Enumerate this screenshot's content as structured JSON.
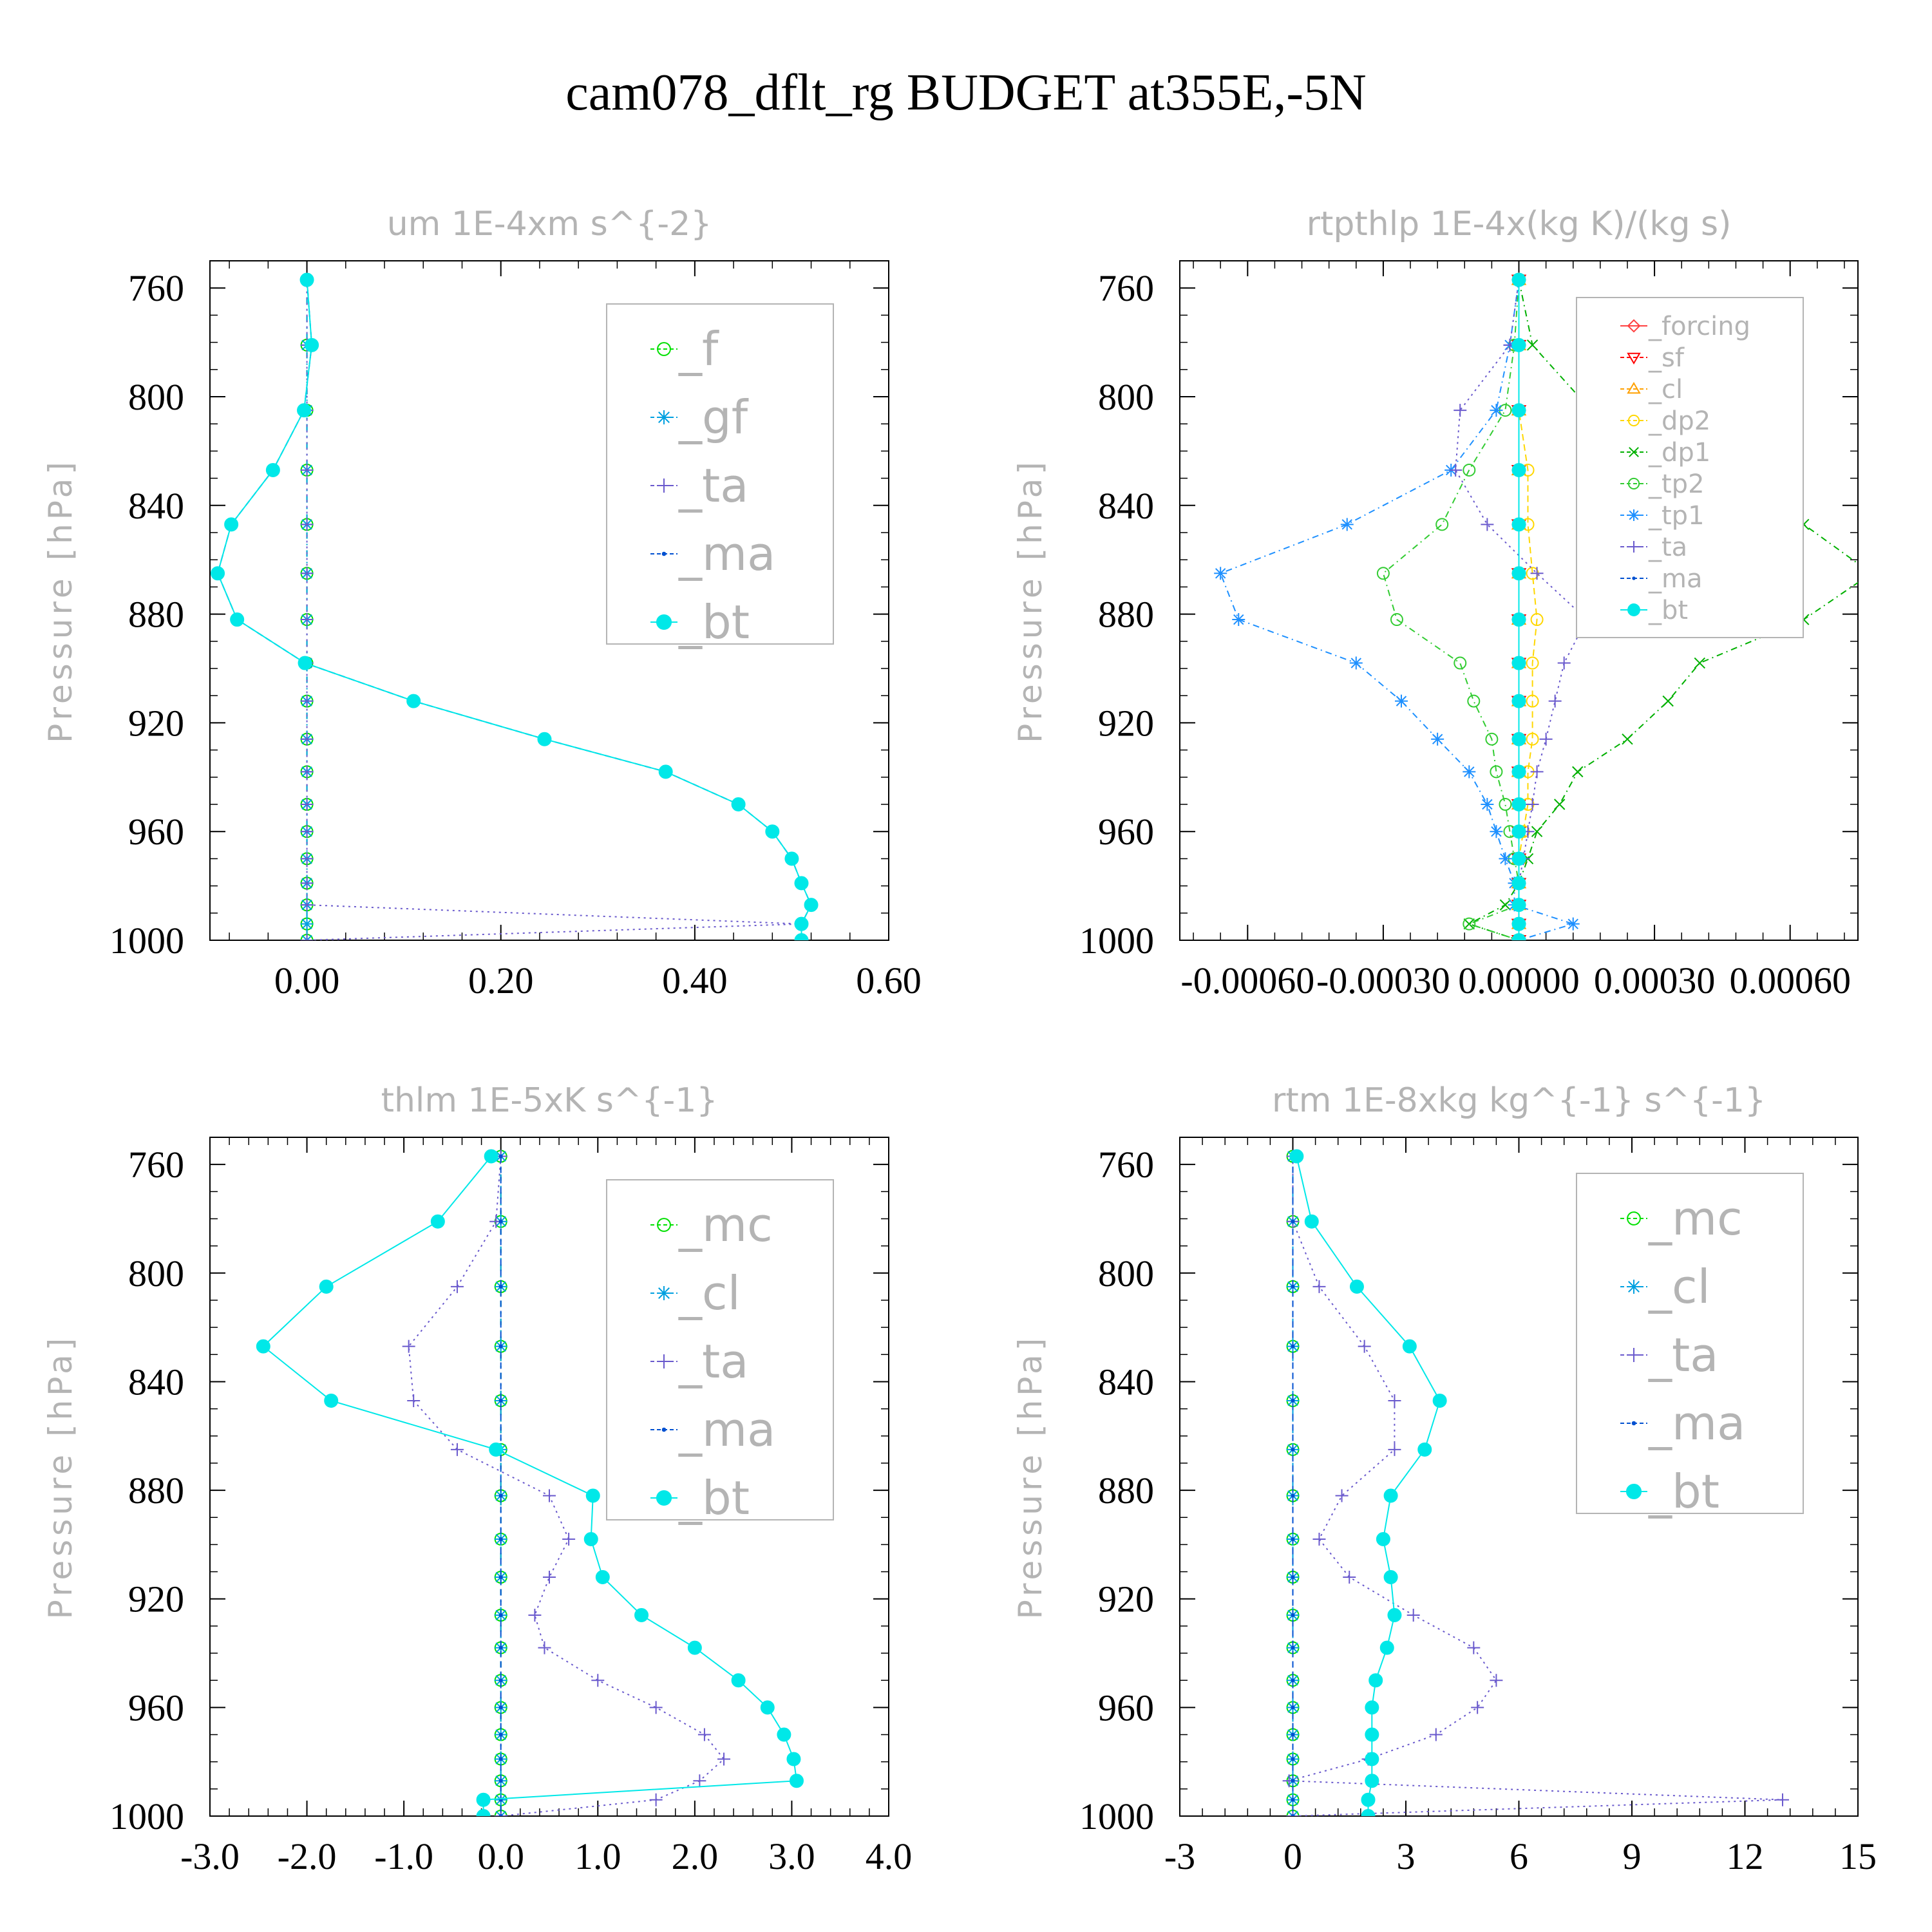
{
  "figure": {
    "title": "cam078_dflt_rg  BUDGET at355E,-5N"
  },
  "chart_data": [
    {
      "type": "line",
      "title": "um  1E-4xm s^{-2}",
      "ylabel": "Pressure [hPa]",
      "y_inverted": true,
      "ylim": [
        1000,
        750
      ],
      "xlim": [
        -0.1,
        0.6
      ],
      "xticks": [
        0.0,
        0.2,
        0.4,
        0.6
      ],
      "xtick_labels": [
        "0.00",
        "0.20",
        "0.40",
        "0.60"
      ],
      "yticks": [
        760,
        800,
        840,
        880,
        920,
        960,
        1000
      ],
      "ytick_labels": [
        "760",
        "800",
        "840",
        "880",
        "920",
        "960",
        "1000"
      ],
      "legend_position": "upper-right",
      "pressure": [
        757,
        781,
        805,
        827,
        847,
        865,
        882,
        898,
        912,
        926,
        938,
        950,
        960,
        970,
        979,
        987,
        994,
        1000
      ],
      "series": [
        {
          "name": "_f",
          "color": "#00e000",
          "marker": "circle-open",
          "dash": "10 8 2 8",
          "values": [
            0,
            0,
            0,
            0,
            0,
            0,
            0,
            0,
            0,
            0,
            0,
            0,
            0,
            0,
            0,
            0,
            0,
            0
          ]
        },
        {
          "name": "_gf",
          "color": "#00a0e0",
          "marker": "star",
          "dash": "10 8 2 8",
          "values": [
            0,
            0,
            0,
            0,
            0,
            0,
            0,
            0,
            0,
            0,
            0,
            0,
            0,
            0,
            0,
            0,
            0,
            0
          ]
        },
        {
          "name": "_ta",
          "color": "#6a5acd",
          "marker": "plus",
          "dash": "3 6",
          "values": [
            0,
            0,
            0,
            0,
            0,
            0,
            0,
            0,
            0,
            0,
            0,
            0,
            0,
            0,
            0,
            0,
            0.51,
            0
          ]
        },
        {
          "name": "_ma",
          "color": "#0050d0",
          "marker": "dot",
          "dash": "10 6",
          "values": [
            0.0,
            0.005,
            -0.003,
            -0.035,
            -0.078,
            -0.092,
            -0.072,
            -0.002,
            0.11,
            0.245,
            0.37,
            0.445,
            0.48,
            0.5,
            0.51,
            0.52,
            0.51,
            0.51
          ]
        },
        {
          "name": "_bt",
          "color": "#00e8e8",
          "marker": "disc",
          "dash": "none",
          "values": [
            0.0,
            0.005,
            -0.003,
            -0.035,
            -0.078,
            -0.092,
            -0.072,
            -0.002,
            0.11,
            0.245,
            0.37,
            0.445,
            0.48,
            0.5,
            0.51,
            0.52,
            0.51,
            0.51
          ]
        }
      ]
    },
    {
      "type": "line",
      "title": "rtpthlp  1E-4x(kg K)/(kg s)",
      "ylabel": "Pressure [hPa]",
      "y_inverted": true,
      "ylim": [
        1000,
        750
      ],
      "xlim": [
        -0.00075,
        0.00075
      ],
      "xticks": [
        -0.0006,
        -0.0003,
        0.0,
        0.0003,
        0.0006
      ],
      "xtick_labels": [
        "-0.00060",
        "-0.00030",
        "0.00000",
        "0.00030",
        "0.00060"
      ],
      "yticks": [
        760,
        800,
        840,
        880,
        920,
        960,
        1000
      ],
      "ytick_labels": [
        "760",
        "800",
        "840",
        "880",
        "920",
        "960",
        "1000"
      ],
      "legend_position": "upper-right",
      "pressure": [
        757,
        781,
        805,
        827,
        847,
        865,
        882,
        898,
        912,
        926,
        938,
        950,
        960,
        970,
        979,
        987,
        994,
        1000
      ],
      "series": [
        {
          "name": "_forcing",
          "color": "#ff4040",
          "marker": "diamond-open",
          "dash": "none",
          "values": [
            0,
            0,
            0,
            0,
            0,
            0,
            0,
            0,
            0,
            0,
            0,
            0,
            0,
            0,
            0,
            0,
            0,
            0
          ]
        },
        {
          "name": "_sf",
          "color": "#ff0000",
          "marker": "tri-down-open",
          "dash": "10 6",
          "values": [
            0,
            0,
            0,
            0,
            0,
            0,
            0,
            0,
            0,
            0,
            0,
            0,
            0,
            0,
            0,
            0,
            0,
            0
          ]
        },
        {
          "name": "_cl",
          "color": "#ffa000",
          "marker": "tri-up-open",
          "dash": "10 6",
          "values": [
            0,
            0,
            0,
            0,
            0,
            0,
            0,
            0,
            0,
            0,
            0,
            0,
            0,
            0,
            0,
            0,
            0,
            0
          ]
        },
        {
          "name": "_dp2",
          "color": "#ffd700",
          "marker": "circle-open",
          "dash": "10 6",
          "values": [
            0,
            0,
            0,
            2e-05,
            2e-05,
            3e-05,
            4e-05,
            3e-05,
            3e-05,
            3e-05,
            2e-05,
            2e-05,
            1e-05,
            0,
            0,
            0,
            0,
            0
          ]
        },
        {
          "name": "_dp1",
          "color": "#00b000",
          "marker": "x",
          "dash": "10 6 2 6",
          "values": [
            0,
            3e-05,
            0.00016,
            0.00042,
            0.00063,
            0.00078,
            0.00063,
            0.0004,
            0.00033,
            0.00024,
            0.00013,
            9e-05,
            4e-05,
            2e-05,
            0,
            -3e-05,
            -0.00011,
            0
          ]
        },
        {
          "name": "_tp2",
          "color": "#33cc33",
          "marker": "circle-open",
          "dash": "10 6 2 6",
          "values": [
            0,
            -1e-05,
            -3e-05,
            -0.00011,
            -0.00017,
            -0.0003,
            -0.00027,
            -0.00013,
            -0.0001,
            -6e-05,
            -5e-05,
            -3e-05,
            -2e-05,
            -1e-05,
            0,
            0,
            -0.00011,
            0
          ]
        },
        {
          "name": "_tp1",
          "color": "#1e90ff",
          "marker": "star",
          "dash": "10 6 2 6",
          "values": [
            0,
            -2e-05,
            -5e-05,
            -0.00015,
            -0.00038,
            -0.00066,
            -0.00062,
            -0.00036,
            -0.00026,
            -0.00018,
            -0.00011,
            -7e-05,
            -5e-05,
            -3e-05,
            -1e-05,
            -1e-05,
            0.00012,
            0
          ]
        },
        {
          "name": "_ta",
          "color": "#6a5acd",
          "marker": "plus",
          "dash": "3 6",
          "values": [
            0,
            -2e-05,
            -0.00013,
            -0.00014,
            -7e-05,
            4e-05,
            0.00015,
            0.0001,
            8e-05,
            6e-05,
            4e-05,
            3e-05,
            2e-05,
            1e-05,
            0,
            0,
            0,
            0
          ]
        },
        {
          "name": "_ma",
          "color": "#0050d0",
          "marker": "dot",
          "dash": "10 6",
          "values": [
            0,
            0,
            0,
            0,
            0,
            0,
            0,
            0,
            0,
            0,
            0,
            0,
            0,
            0,
            0,
            0,
            0,
            0
          ]
        },
        {
          "name": "_bt",
          "color": "#00e8e8",
          "marker": "disc",
          "dash": "none",
          "values": [
            0,
            0,
            0,
            0,
            0,
            0,
            0,
            0,
            0,
            0,
            0,
            0,
            0,
            0,
            0,
            0,
            0,
            0
          ]
        }
      ]
    },
    {
      "type": "line",
      "title": "thlm  1E-5xK s^{-1}",
      "ylabel": "Pressure [hPa]",
      "y_inverted": true,
      "ylim": [
        1000,
        750
      ],
      "xlim": [
        -3.0,
        4.0
      ],
      "xticks": [
        -3.0,
        -2.0,
        -1.0,
        0.0,
        1.0,
        2.0,
        3.0,
        4.0
      ],
      "xtick_labels": [
        "-3.0",
        "-2.0",
        "-1.0",
        "0.0",
        "1.0",
        "2.0",
        "3.0",
        "4.0"
      ],
      "yticks": [
        760,
        800,
        840,
        880,
        920,
        960,
        1000
      ],
      "ytick_labels": [
        "760",
        "800",
        "840",
        "880",
        "920",
        "960",
        "1000"
      ],
      "legend_position": "upper-right",
      "pressure": [
        757,
        781,
        805,
        827,
        847,
        865,
        882,
        898,
        912,
        926,
        938,
        950,
        960,
        970,
        979,
        987,
        994,
        1000
      ],
      "series": [
        {
          "name": "_mc",
          "color": "#00e000",
          "marker": "circle-open",
          "dash": "10 8 2 8",
          "values": [
            0,
            0,
            0,
            0,
            0,
            0,
            0,
            0,
            0,
            0,
            0,
            0,
            0,
            0,
            0,
            0,
            0,
            0
          ]
        },
        {
          "name": "_cl",
          "color": "#00a0e0",
          "marker": "star",
          "dash": "10 8 2 8",
          "values": [
            0,
            0,
            0,
            0,
            0,
            0,
            0,
            0,
            0,
            0,
            0,
            0,
            0,
            0,
            0,
            0,
            0,
            0
          ]
        },
        {
          "name": "_ta",
          "color": "#6a5acd",
          "marker": "plus",
          "dash": "3 6",
          "values": [
            0.0,
            -0.05,
            -0.45,
            -0.95,
            -0.9,
            -0.45,
            0.5,
            0.7,
            0.5,
            0.35,
            0.45,
            1.0,
            1.6,
            2.1,
            2.3,
            2.05,
            1.6,
            0
          ]
        },
        {
          "name": "_ma",
          "color": "#0050d0",
          "marker": "dot",
          "dash": "10 6",
          "values": [
            0,
            0,
            0,
            0,
            0,
            0,
            0,
            0,
            0,
            0,
            0,
            0,
            0,
            0,
            0,
            0,
            0,
            0
          ]
        },
        {
          "name": "_bt",
          "color": "#00e8e8",
          "marker": "disc",
          "dash": "none",
          "values": [
            -0.1,
            -0.65,
            -1.8,
            -2.45,
            -1.75,
            -0.05,
            0.95,
            0.93,
            1.05,
            1.45,
            2.0,
            2.45,
            2.75,
            2.92,
            3.02,
            3.05,
            -0.18,
            -0.18
          ]
        }
      ]
    },
    {
      "type": "line",
      "title": "rtm  1E-8xkg kg^{-1} s^{-1}",
      "ylabel": "Pressure [hPa]",
      "y_inverted": true,
      "ylim": [
        1000,
        750
      ],
      "xlim": [
        -3,
        15
      ],
      "xticks": [
        -3,
        0,
        3,
        6,
        9,
        12,
        15
      ],
      "xtick_labels": [
        "-3",
        "0",
        "3",
        "6",
        "9",
        "12",
        "15"
      ],
      "yticks": [
        760,
        800,
        840,
        880,
        920,
        960,
        1000
      ],
      "ytick_labels": [
        "760",
        "800",
        "840",
        "880",
        "920",
        "960",
        "1000"
      ],
      "legend_position": "upper-right",
      "pressure": [
        757,
        781,
        805,
        827,
        847,
        865,
        882,
        898,
        912,
        926,
        938,
        950,
        960,
        970,
        979,
        987,
        994,
        1000
      ],
      "series": [
        {
          "name": "_mc",
          "color": "#00e000",
          "marker": "circle-open",
          "dash": "10 8 2 8",
          "values": [
            0,
            0,
            0,
            0,
            0,
            0,
            0,
            0,
            0,
            0,
            0,
            0,
            0,
            0,
            0,
            0,
            0,
            0
          ]
        },
        {
          "name": "_cl",
          "color": "#00a0e0",
          "marker": "star",
          "dash": "10 8 2 8",
          "values": [
            0,
            0,
            0,
            0,
            0,
            0,
            0,
            0,
            0,
            0,
            0,
            0,
            0,
            0,
            0,
            0,
            0,
            0
          ]
        },
        {
          "name": "_ta",
          "color": "#6a5acd",
          "marker": "plus",
          "dash": "3 6",
          "values": [
            0,
            0,
            0.7,
            1.9,
            2.7,
            2.7,
            1.3,
            0.7,
            1.5,
            3.2,
            4.8,
            5.4,
            4.9,
            3.8,
            2.0,
            -0.1,
            13.0,
            0
          ]
        },
        {
          "name": "_ma",
          "color": "#0050d0",
          "marker": "dot",
          "dash": "10 6",
          "values": [
            0,
            0,
            0,
            0,
            0,
            0,
            0,
            0,
            0,
            0,
            0,
            0,
            0,
            0,
            0,
            0,
            0,
            0
          ]
        },
        {
          "name": "_bt",
          "color": "#00e8e8",
          "marker": "disc",
          "dash": "none",
          "values": [
            0.1,
            0.5,
            1.7,
            3.1,
            3.9,
            3.5,
            2.6,
            2.4,
            2.6,
            2.7,
            2.5,
            2.2,
            2.1,
            2.1,
            2.1,
            2.1,
            2.0,
            2.0
          ]
        }
      ]
    }
  ]
}
